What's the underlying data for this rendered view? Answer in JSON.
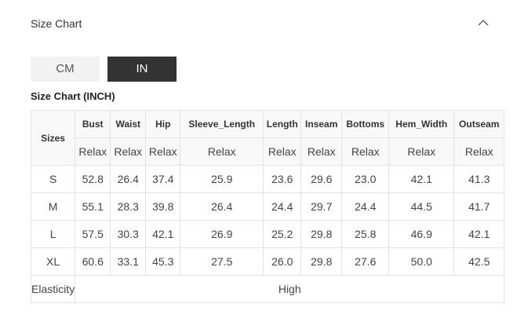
{
  "header": {
    "title": "Size Chart",
    "collapse_icon": "chevron-up-icon"
  },
  "units": {
    "options": [
      "CM",
      "IN"
    ],
    "selected": "IN"
  },
  "table": {
    "caption": "Size Chart (INCH)",
    "sizes_header": "Sizes",
    "columns": [
      "Bust",
      "Waist",
      "Hip",
      "Sleeve_Length",
      "Length",
      "Inseam",
      "Bottoms",
      "Hem_Width",
      "Outseam"
    ],
    "fit": [
      "Relax",
      "Relax",
      "Relax",
      "Relax",
      "Relax",
      "Relax",
      "Relax",
      "Relax",
      "Relax"
    ],
    "rows": [
      {
        "size": "S",
        "values": [
          "52.8",
          "26.4",
          "37.4",
          "25.9",
          "23.6",
          "29.6",
          "23.0",
          "42.1",
          "41.3"
        ]
      },
      {
        "size": "M",
        "values": [
          "55.1",
          "28.3",
          "39.8",
          "26.4",
          "24.4",
          "29.7",
          "24.4",
          "44.5",
          "41.7"
        ]
      },
      {
        "size": "L",
        "values": [
          "57.5",
          "30.3",
          "42.1",
          "26.9",
          "25.2",
          "29.8",
          "25.8",
          "46.9",
          "42.1"
        ]
      },
      {
        "size": "XL",
        "values": [
          "60.6",
          "33.1",
          "45.3",
          "27.5",
          "26.0",
          "29.8",
          "27.6",
          "50.0",
          "42.5"
        ]
      }
    ],
    "elasticity_label": "Elasticity",
    "elasticity_value": "High"
  }
}
